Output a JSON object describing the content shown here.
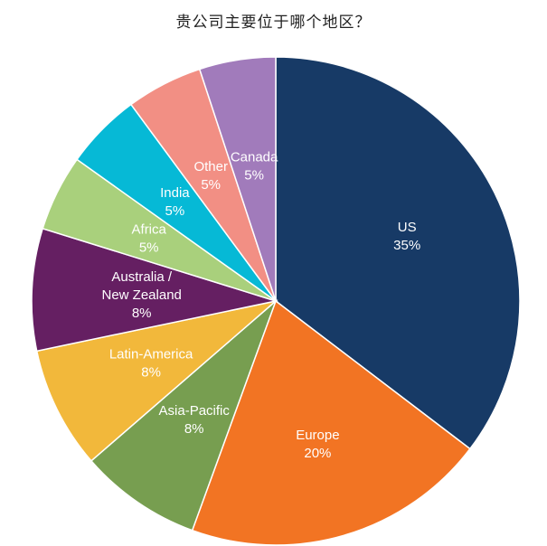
{
  "chart_data": {
    "type": "pie",
    "title": "贵公司主要位于哪个地区？",
    "slices": [
      {
        "label": "US",
        "percent_label": "35%",
        "value": 35,
        "color": "#173a66"
      },
      {
        "label": "Europe",
        "percent_label": "20%",
        "value": 20,
        "color": "#f27423"
      },
      {
        "label": "Asia-Pacific",
        "percent_label": "8%",
        "value": 8,
        "color": "#779e50"
      },
      {
        "label": "Latin-America",
        "percent_label": "8%",
        "value": 8,
        "color": "#f2b83b"
      },
      {
        "label": "Australia /\nNew Zealand",
        "percent_label": "8%",
        "value": 8,
        "color": "#651f62"
      },
      {
        "label": "Africa",
        "percent_label": "5%",
        "value": 5,
        "color": "#a9d07c"
      },
      {
        "label": "India",
        "percent_label": "5%",
        "value": 5,
        "color": "#06b9d6"
      },
      {
        "label": "Other",
        "percent_label": "5%",
        "value": 5,
        "color": "#f28f84"
      },
      {
        "label": "Canada",
        "percent_label": "5%",
        "value": 5,
        "color": "#a17bbb"
      }
    ]
  }
}
